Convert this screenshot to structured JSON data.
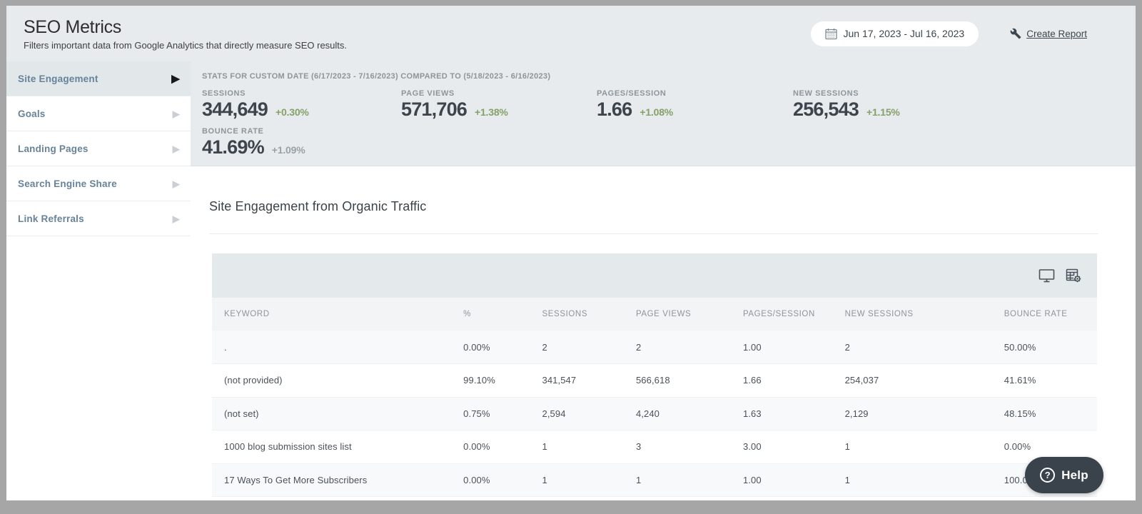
{
  "header": {
    "title": "SEO Metrics",
    "subtitle": "Filters important data from Google Analytics that directly measure SEO results.",
    "date_range": "Jun 17, 2023 - Jul 16, 2023",
    "create_report_label": "Create Report"
  },
  "sidebar": {
    "items": [
      {
        "label": "Site Engagement",
        "active": true
      },
      {
        "label": "Goals",
        "active": false
      },
      {
        "label": "Landing Pages",
        "active": false
      },
      {
        "label": "Search Engine Share",
        "active": false
      },
      {
        "label": "Link Referrals",
        "active": false
      }
    ]
  },
  "stats": {
    "compare_line": "STATS FOR CUSTOM DATE (6/17/2023 - 7/16/2023) COMPARED TO (5/18/2023 - 6/16/2023)",
    "metrics": [
      {
        "label": "SESSIONS",
        "value": "344,649",
        "delta": "+0.30%",
        "delta_color": "green"
      },
      {
        "label": "PAGE VIEWS",
        "value": "571,706",
        "delta": "+1.38%",
        "delta_color": "green"
      },
      {
        "label": "PAGES/SESSION",
        "value": "1.66",
        "delta": "+1.08%",
        "delta_color": "green"
      },
      {
        "label": "NEW SESSIONS",
        "value": "256,543",
        "delta": "+1.15%",
        "delta_color": "green"
      },
      {
        "label": "BOUNCE RATE",
        "value": "41.69%",
        "delta": "+1.09%",
        "delta_color": "gray"
      }
    ]
  },
  "main": {
    "section_title": "Site Engagement from Organic Traffic",
    "table": {
      "columns": [
        "KEYWORD",
        "%",
        "SESSIONS",
        "PAGE VIEWS",
        "PAGES/SESSION",
        "NEW SESSIONS",
        "BOUNCE RATE"
      ],
      "rows": [
        [
          ".",
          "0.00%",
          "2",
          "2",
          "1.00",
          "2",
          "50.00%"
        ],
        [
          "(not provided)",
          "99.10%",
          "341,547",
          "566,618",
          "1.66",
          "254,037",
          "41.61%"
        ],
        [
          "(not set)",
          "0.75%",
          "2,594",
          "4,240",
          "1.63",
          "2,129",
          "48.15%"
        ],
        [
          "1000 blog submission sites list",
          "0.00%",
          "1",
          "3",
          "3.00",
          "1",
          "0.00%"
        ],
        [
          "17 Ways To Get More Subscribers",
          "0.00%",
          "1",
          "1",
          "1.00",
          "1",
          "100.00%"
        ]
      ]
    }
  },
  "help": {
    "label": "Help"
  },
  "colors": {
    "header_bg": "#e7ebee",
    "sidebar_text": "#66839a",
    "delta_green": "#85a069",
    "delta_gray": "#9aa1a7",
    "value_dark": "#3d444b",
    "help_bg": "#3a424c"
  }
}
